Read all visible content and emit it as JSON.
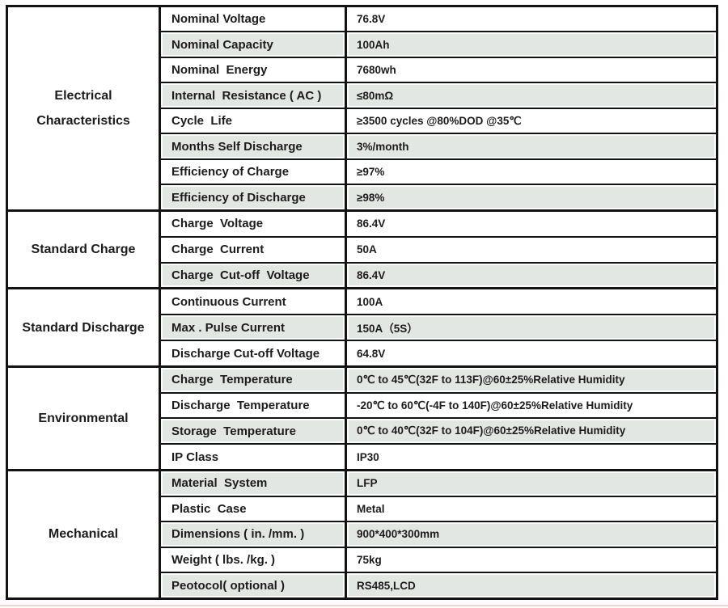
{
  "colors": {
    "border": "#131313",
    "shaded_row": "#e3e7e4",
    "accent_line": "#f3d1cf",
    "text": "#1c1c1c"
  },
  "table": {
    "sections": [
      {
        "category": "Electrical Characteristics",
        "category_lines": [
          "Electrical",
          "Characteristics"
        ],
        "rows": [
          {
            "param": "Nominal Voltage",
            "value": "76.8V",
            "shaded": false
          },
          {
            "param": "Nominal Capacity",
            "value": "100Ah",
            "shaded": true
          },
          {
            "param": "Nominal  Energy",
            "value": "7680wh",
            "shaded": false
          },
          {
            "param": "Internal  Resistance ( AC )",
            "value": "≤80mΩ",
            "shaded": true
          },
          {
            "param": "Cycle  Life",
            "value": "≥3500 cycles @80%DOD @35℃",
            "shaded": false
          },
          {
            "param": "Months Self Discharge",
            "value": "3%/month",
            "shaded": true
          },
          {
            "param": "Efficiency of Charge",
            "value": "≥97%",
            "shaded": false
          },
          {
            "param": "Efficiency of Discharge",
            "value": "≥98%",
            "shaded": true
          }
        ]
      },
      {
        "category": "Standard Charge",
        "category_lines": [
          "Standard Charge"
        ],
        "rows": [
          {
            "param": "Charge  Voltage",
            "value": "86.4V",
            "shaded": false
          },
          {
            "param": "Charge  Current",
            "value": "50A",
            "shaded": false
          },
          {
            "param": "Charge  Cut-off  Voltage",
            "value": "86.4V",
            "shaded": true
          }
        ]
      },
      {
        "category": "Standard Discharge",
        "category_lines": [
          "Standard Discharge"
        ],
        "rows": [
          {
            "param": "Continuous Current",
            "value": "100A",
            "shaded": false
          },
          {
            "param": "Max . Pulse Current",
            "value": "150A（5S）",
            "shaded": true
          },
          {
            "param": "Discharge Cut-off Voltage",
            "value": "64.8V",
            "shaded": false
          }
        ]
      },
      {
        "category": "Environmental",
        "category_lines": [
          "Environmental"
        ],
        "rows": [
          {
            "param": "Charge  Temperature",
            "value": "0℃ to 45℃(32F to 113F)@60±25%Relative Humidity",
            "shaded": true
          },
          {
            "param": "Discharge  Temperature",
            "value": "-20℃ to 60℃(-4F to 140F)@60±25%Relative Humidity",
            "shaded": false
          },
          {
            "param": "Storage  Temperature",
            "value": "0℃ to 40℃(32F to 104F)@60±25%Relative Humidity",
            "shaded": true
          },
          {
            "param": "IP Class",
            "value": "IP30",
            "shaded": false
          }
        ]
      },
      {
        "category": "Mechanical",
        "category_lines": [
          "Mechanical"
        ],
        "rows": [
          {
            "param": "Material  System",
            "value": "LFP",
            "shaded": true
          },
          {
            "param": "Plastic  Case",
            "value": "Metal",
            "shaded": false
          },
          {
            "param": "Dimensions ( in. /mm. )",
            "value": "900*400*300mm",
            "shaded": true
          },
          {
            "param": "Weight ( lbs. /kg. )",
            "value": "75kg",
            "shaded": false
          },
          {
            "param": "Peotocol( optional )",
            "value": "RS485,LCD",
            "shaded": true
          }
        ]
      }
    ]
  }
}
